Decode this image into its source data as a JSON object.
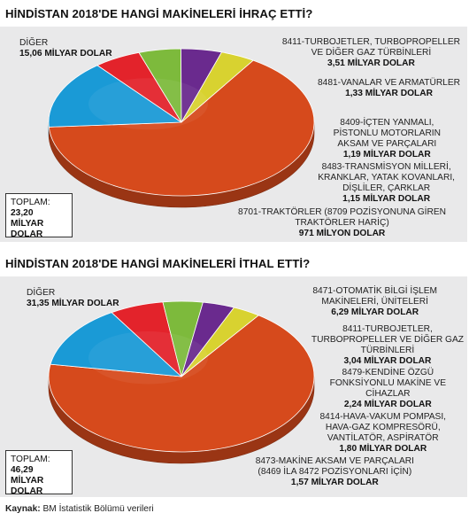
{
  "chart_data": [
    {
      "type": "pie",
      "title": "HİNDİSTAN 2018'DE HANGİ MAKİNELERİ İHRAÇ ETTİ?",
      "total": {
        "label": "TOPLAM:",
        "value": "23,20 MİLYAR DOLAR",
        "value_lines": [
          "23,20 MİLYAR",
          "DOLAR"
        ]
      },
      "slices": [
        {
          "lines": [
            "DİĞER"
          ],
          "value": 15.06,
          "value_text": "15,06 MİLYAR DOLAR",
          "color": "#d64a1c"
        },
        {
          "lines": [
            "8411-TURBOJETLER, TURBOPROPELLER",
            "VE DİĞER GAZ TÜRBİNLERİ"
          ],
          "value": 3.51,
          "value_text": "3,51 MİLYAR DOLAR",
          "color": "#1a9ad6"
        },
        {
          "lines": [
            "8481-VANALAR VE ARMATÜRLER"
          ],
          "value": 1.33,
          "value_text": "1,33 MİLYAR DOLAR",
          "color": "#e3232b"
        },
        {
          "lines": [
            "8409-İÇTEN YANMALI,",
            "PİSTONLU MOTORLARIN",
            "AKSAM VE PARÇALARI"
          ],
          "value": 1.19,
          "value_text": "1,19 MİLYAR DOLAR",
          "color": "#7dba3c"
        },
        {
          "lines": [
            "8483-TRANSMİSYON MİLLERİ,",
            "KRANKLAR, YATAK KOVANLARI,",
            "DİŞLİLER, ÇARKLAR"
          ],
          "value": 1.15,
          "value_text": "1,15 MİLYAR DOLAR",
          "color": "#6a2a8e"
        },
        {
          "lines": [
            "8701-TRAKTÖRLER (8709 POZİSYONUNA GİREN",
            "TRAKTÖRLER HARİÇ)"
          ],
          "value": 0.971,
          "value_text": "971 MİLYON DOLAR",
          "color": "#d8d230"
        }
      ]
    },
    {
      "type": "pie",
      "title": "HİNDİSTAN 2018'DE HANGİ MAKİNELERİ İTHAL ETTİ?",
      "total": {
        "label": "TOPLAM:",
        "value": "46,29 MİLYAR DOLAR",
        "value_lines": [
          "46,29 MİLYAR",
          "DOLAR"
        ]
      },
      "slices": [
        {
          "lines": [
            "DİĞER"
          ],
          "value": 31.35,
          "value_text": "31,35 MİLYAR DOLAR",
          "color": "#d64a1c"
        },
        {
          "lines": [
            "8471-OTOMATİK BİLGİ İŞLEM",
            "MAKİNELERİ, ÜNİTELERİ"
          ],
          "value": 6.29,
          "value_text": "6,29 MİLYAR DOLAR",
          "color": "#1a9ad6"
        },
        {
          "lines": [
            "8411-TURBOJETLER,",
            "TURBOPROPELLER VE DİĞER GAZ",
            "TÜRBİNLERİ"
          ],
          "value": 3.04,
          "value_text": "3,04 MİLYAR DOLAR",
          "color": "#e3232b"
        },
        {
          "lines": [
            "8479-KENDİNE ÖZGÜ",
            "FONKSİYONLU MAKİNE VE",
            "CİHAZLAR"
          ],
          "value": 2.24,
          "value_text": "2,24 MİLYAR DOLAR",
          "color": "#7dba3c"
        },
        {
          "lines": [
            "8414-HAVA-VAKUM POMPASI,",
            "HAVA-GAZ KOMPRESÖRÜ,",
            "VANTİLATÖR, ASPİRATÖR"
          ],
          "value": 1.8,
          "value_text": "1,80 MİLYAR DOLAR",
          "color": "#6a2a8e"
        },
        {
          "lines": [
            "8473-MAKİNE AKSAM VE PARÇALARI",
            "(8469 İLA 8472 POZİSYONLARI İÇİN)"
          ],
          "value": 1.57,
          "value_text": "1,57 MİLYAR DOLAR",
          "color": "#d8d230"
        }
      ]
    }
  ],
  "source": {
    "label": "Kaynak:",
    "text": "BM İstatistik Bölümü verileri"
  }
}
